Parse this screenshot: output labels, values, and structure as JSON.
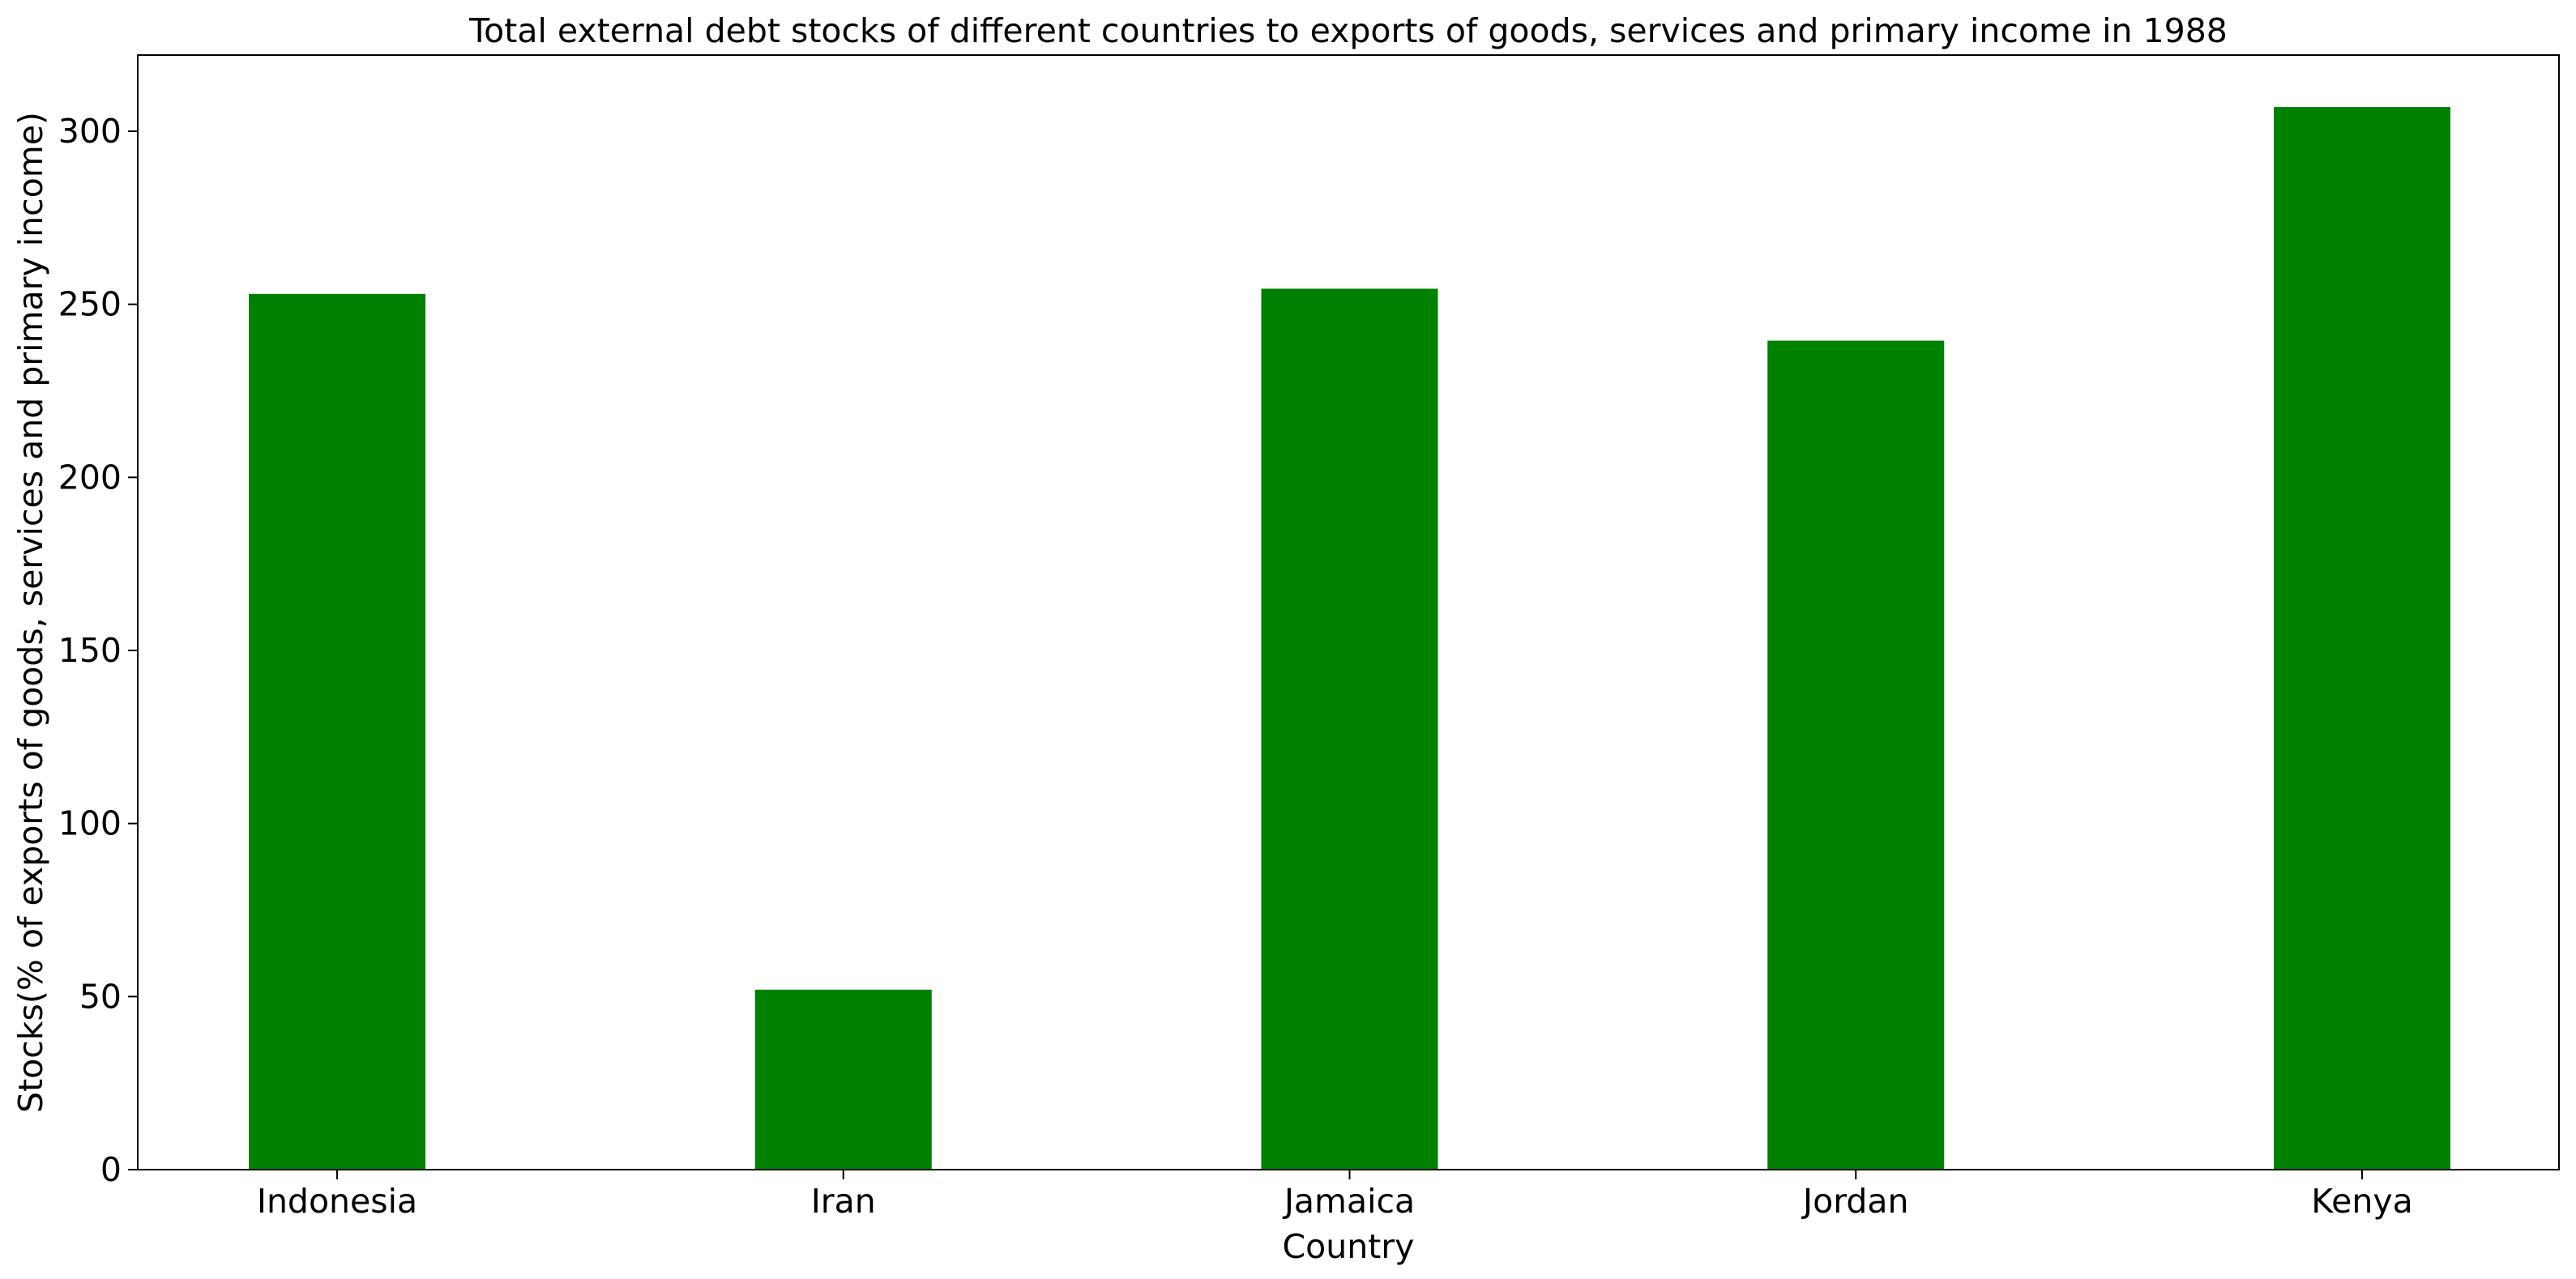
{
  "chart_data": {
    "type": "bar",
    "title": "Total external debt stocks of different countries to exports of goods, services and primary income in 1988",
    "xlabel": "Country",
    "ylabel": "Stocks(% of exports of goods, services and primary income)",
    "categories": [
      "Indonesia",
      "Iran",
      "Jamaica",
      "Jordan",
      "Kenya"
    ],
    "series": [
      {
        "values": [
          253.0,
          52.0,
          254.5,
          239.5,
          307.0
        ],
        "color": "#008000"
      }
    ],
    "ylim": [
      0,
      322
    ],
    "yticks": [
      0,
      50,
      100,
      150,
      200,
      250,
      300
    ],
    "grid": false,
    "legend": "none"
  }
}
